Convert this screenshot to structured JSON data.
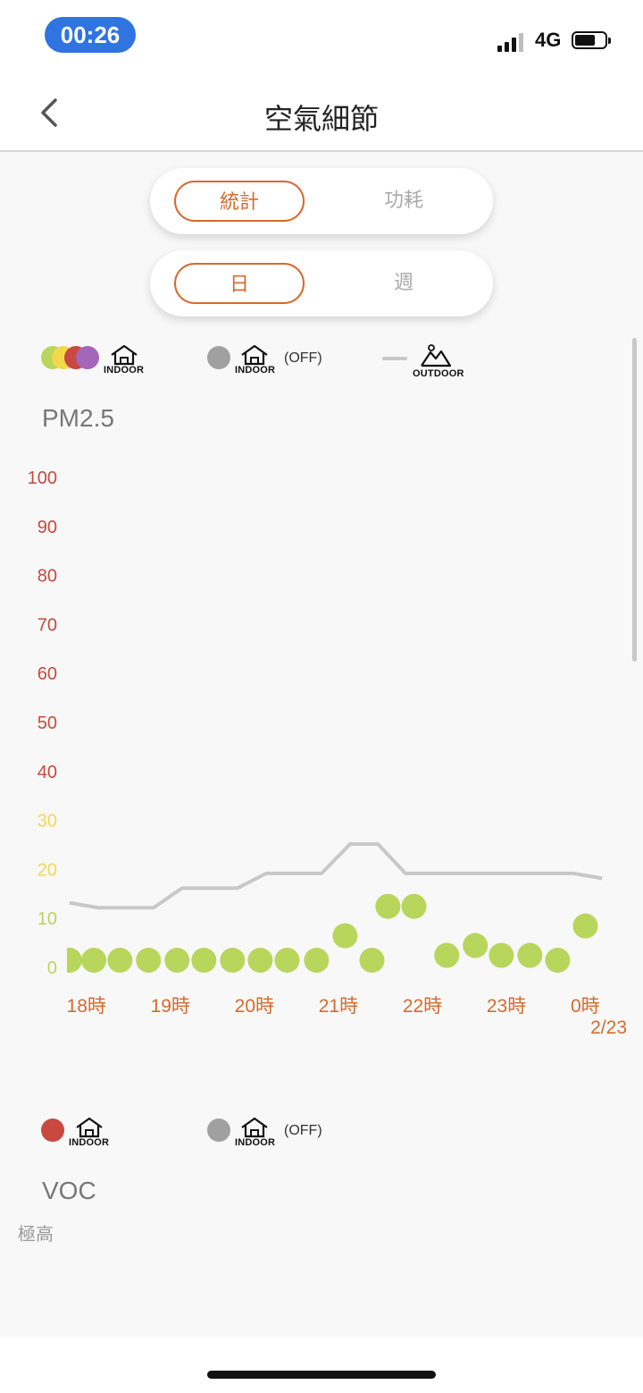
{
  "status_bar": {
    "time": "00:26",
    "network": "4G"
  },
  "header": {
    "title": "空氣細節"
  },
  "segment_primary": {
    "active": "統計",
    "inactive": "功耗"
  },
  "segment_period": {
    "active": "日",
    "inactive": "週"
  },
  "pm_legend": {
    "indoor_caption": "INDOOR",
    "indoor_off_caption": "INDOOR",
    "off_label": "(OFF)",
    "outdoor_caption": "OUTDOOR"
  },
  "voc_legend": {
    "indoor_caption": "INDOOR",
    "indoor_off_caption": "INDOOR",
    "off_label": "(OFF)"
  },
  "voc": {
    "title": "VOC",
    "level_label": "極高"
  },
  "colors": {
    "accent": "#d66a2c",
    "good": "#b8d65c",
    "moderate": "#f2d94a",
    "poor": "#c9483f",
    "very_poor": "#a466b8",
    "off": "#a0a0a0",
    "outdoor_line": "#c8c8c8"
  },
  "chart_data": {
    "type": "scatter",
    "title": "PM2.5",
    "ylim": [
      0,
      100
    ],
    "yticks": [
      0,
      10,
      20,
      30,
      40,
      50,
      60,
      70,
      80,
      90,
      100
    ],
    "ytick_colors": [
      "#b8d65c",
      "#b8d65c",
      "#f2d94a",
      "#f2d94a",
      "#c9483f",
      "#c9483f",
      "#c9483f",
      "#c9483f",
      "#c9483f",
      "#c9483f",
      "#c9483f"
    ],
    "xlim": [
      17.75,
      24.5
    ],
    "xticks": [
      {
        "x": 18,
        "label": "18時"
      },
      {
        "x": 19,
        "label": "19時"
      },
      {
        "x": 20,
        "label": "20時"
      },
      {
        "x": 21,
        "label": "21時"
      },
      {
        "x": 22,
        "label": "22時"
      },
      {
        "x": 23,
        "label": "23時"
      },
      {
        "x": 24,
        "label": "0時"
      }
    ],
    "date_label": "2/23",
    "grid": false,
    "series": [
      {
        "kind": "indoor",
        "color": "#b8d65c",
        "x": [
          17.78,
          18.07,
          18.38,
          18.72,
          19.06,
          19.38,
          19.72,
          20.05,
          20.37,
          20.72,
          21.06,
          21.38,
          21.57,
          21.88,
          22.27,
          22.61,
          22.92,
          23.26,
          23.59,
          23.92
        ],
        "y": [
          0,
          0,
          0,
          0,
          0,
          0,
          0,
          0,
          0,
          0,
          5,
          0,
          11,
          11,
          1,
          3,
          1,
          1,
          0,
          7
        ]
      },
      {
        "kind": "outdoor",
        "color": "#c8c8c8",
        "x": [
          17.78,
          18.12,
          18.45,
          18.78,
          19.12,
          19.45,
          19.78,
          20.12,
          20.45,
          20.78,
          21.12,
          21.45,
          21.78,
          22.12,
          22.45,
          22.78,
          23.12,
          23.45,
          23.78,
          24.12
        ],
        "y": [
          13,
          12,
          12,
          12,
          16,
          16,
          16,
          19,
          19,
          19,
          25,
          25,
          19,
          19,
          19,
          19,
          19,
          19,
          19,
          18
        ]
      }
    ]
  }
}
